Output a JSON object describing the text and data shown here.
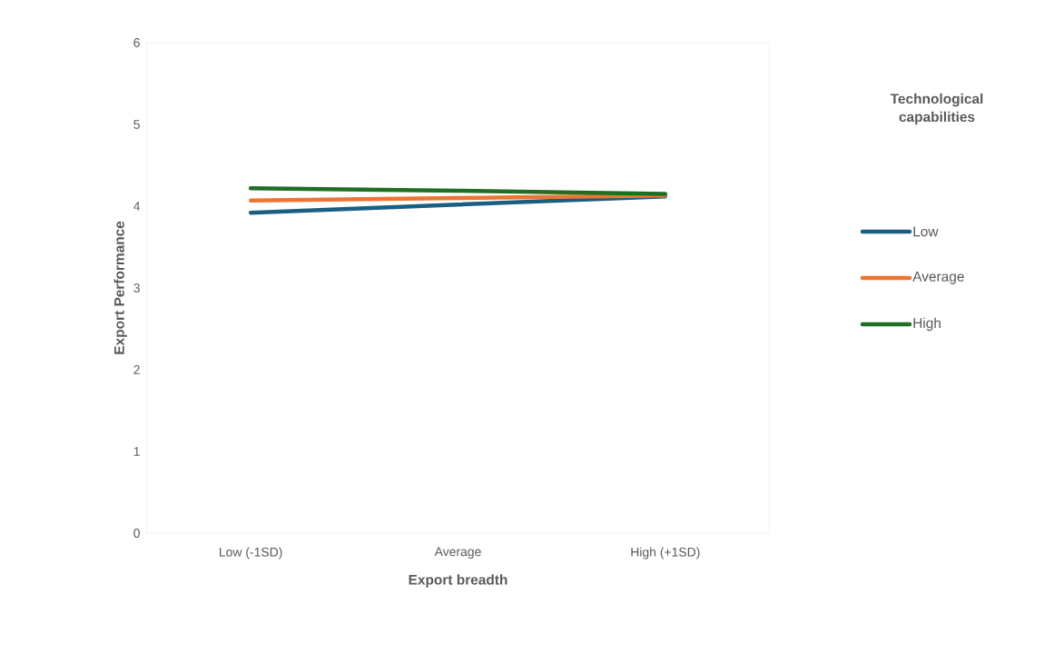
{
  "chart_data": {
    "type": "line",
    "xlabel": "Export breadth",
    "ylabel": "Export Performance",
    "legend_title": "Technological capabilities",
    "categories": [
      "Low (-1SD)",
      "Average",
      "High (+1SD)"
    ],
    "ylim": [
      0,
      6
    ],
    "yticks": [
      0,
      1,
      2,
      3,
      4,
      5,
      6
    ],
    "legend": "right",
    "grid": false,
    "marker": "none",
    "line_style": "solid",
    "series": [
      {
        "name": "Low",
        "color": "#1a5e82",
        "values": [
          3.92,
          4.02,
          4.12
        ]
      },
      {
        "name": "Average",
        "color": "#ed7534",
        "values": [
          4.07,
          4.1,
          4.13
        ]
      },
      {
        "name": "High",
        "color": "#1f6e23",
        "values": [
          4.22,
          4.19,
          4.15
        ]
      }
    ]
  }
}
